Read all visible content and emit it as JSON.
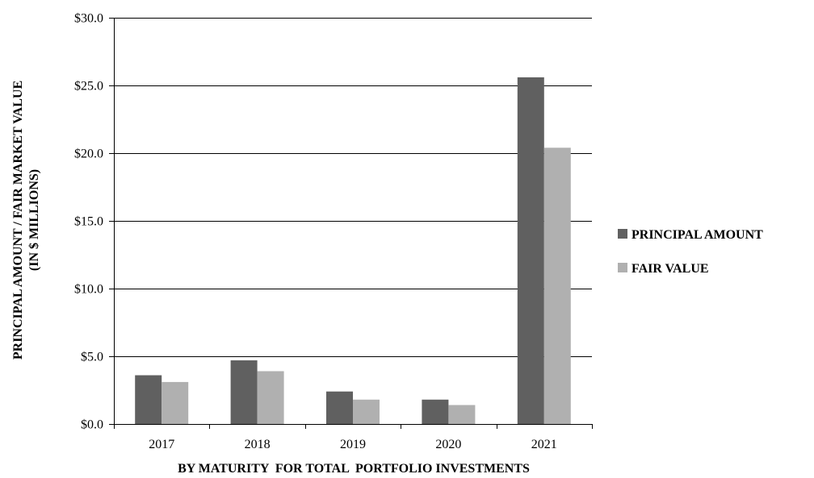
{
  "chart_data": {
    "type": "bar",
    "categories": [
      "2017",
      "2018",
      "2019",
      "2020",
      "2021"
    ],
    "series": [
      {
        "name": "PRINCIPAL AMOUNT",
        "values": [
          3.6,
          4.7,
          2.4,
          1.8,
          25.6
        ],
        "color": "#606060"
      },
      {
        "name": "FAIR VALUE",
        "values": [
          3.1,
          3.9,
          1.8,
          1.4,
          20.4
        ],
        "color": "#b0b0b0"
      }
    ],
    "title": "",
    "xlabel": "BY MATURITY  FOR TOTAL  PORTFOLIO INVESTMENTS",
    "ylabel_lines": [
      "PRINCIPAL AMOUNT / FAIR MARKET  VALUE",
      "(IN $ MILLIONS)"
    ],
    "ylim": [
      0,
      30
    ],
    "yticks": [
      0,
      5,
      10,
      15,
      20,
      25,
      30
    ],
    "ytick_labels": [
      "$0.0",
      "$5.0",
      "$10.0",
      "$15.0",
      "$20.0",
      "$25.0",
      "$30.0"
    ],
    "grid": true,
    "legend_position": "right"
  }
}
